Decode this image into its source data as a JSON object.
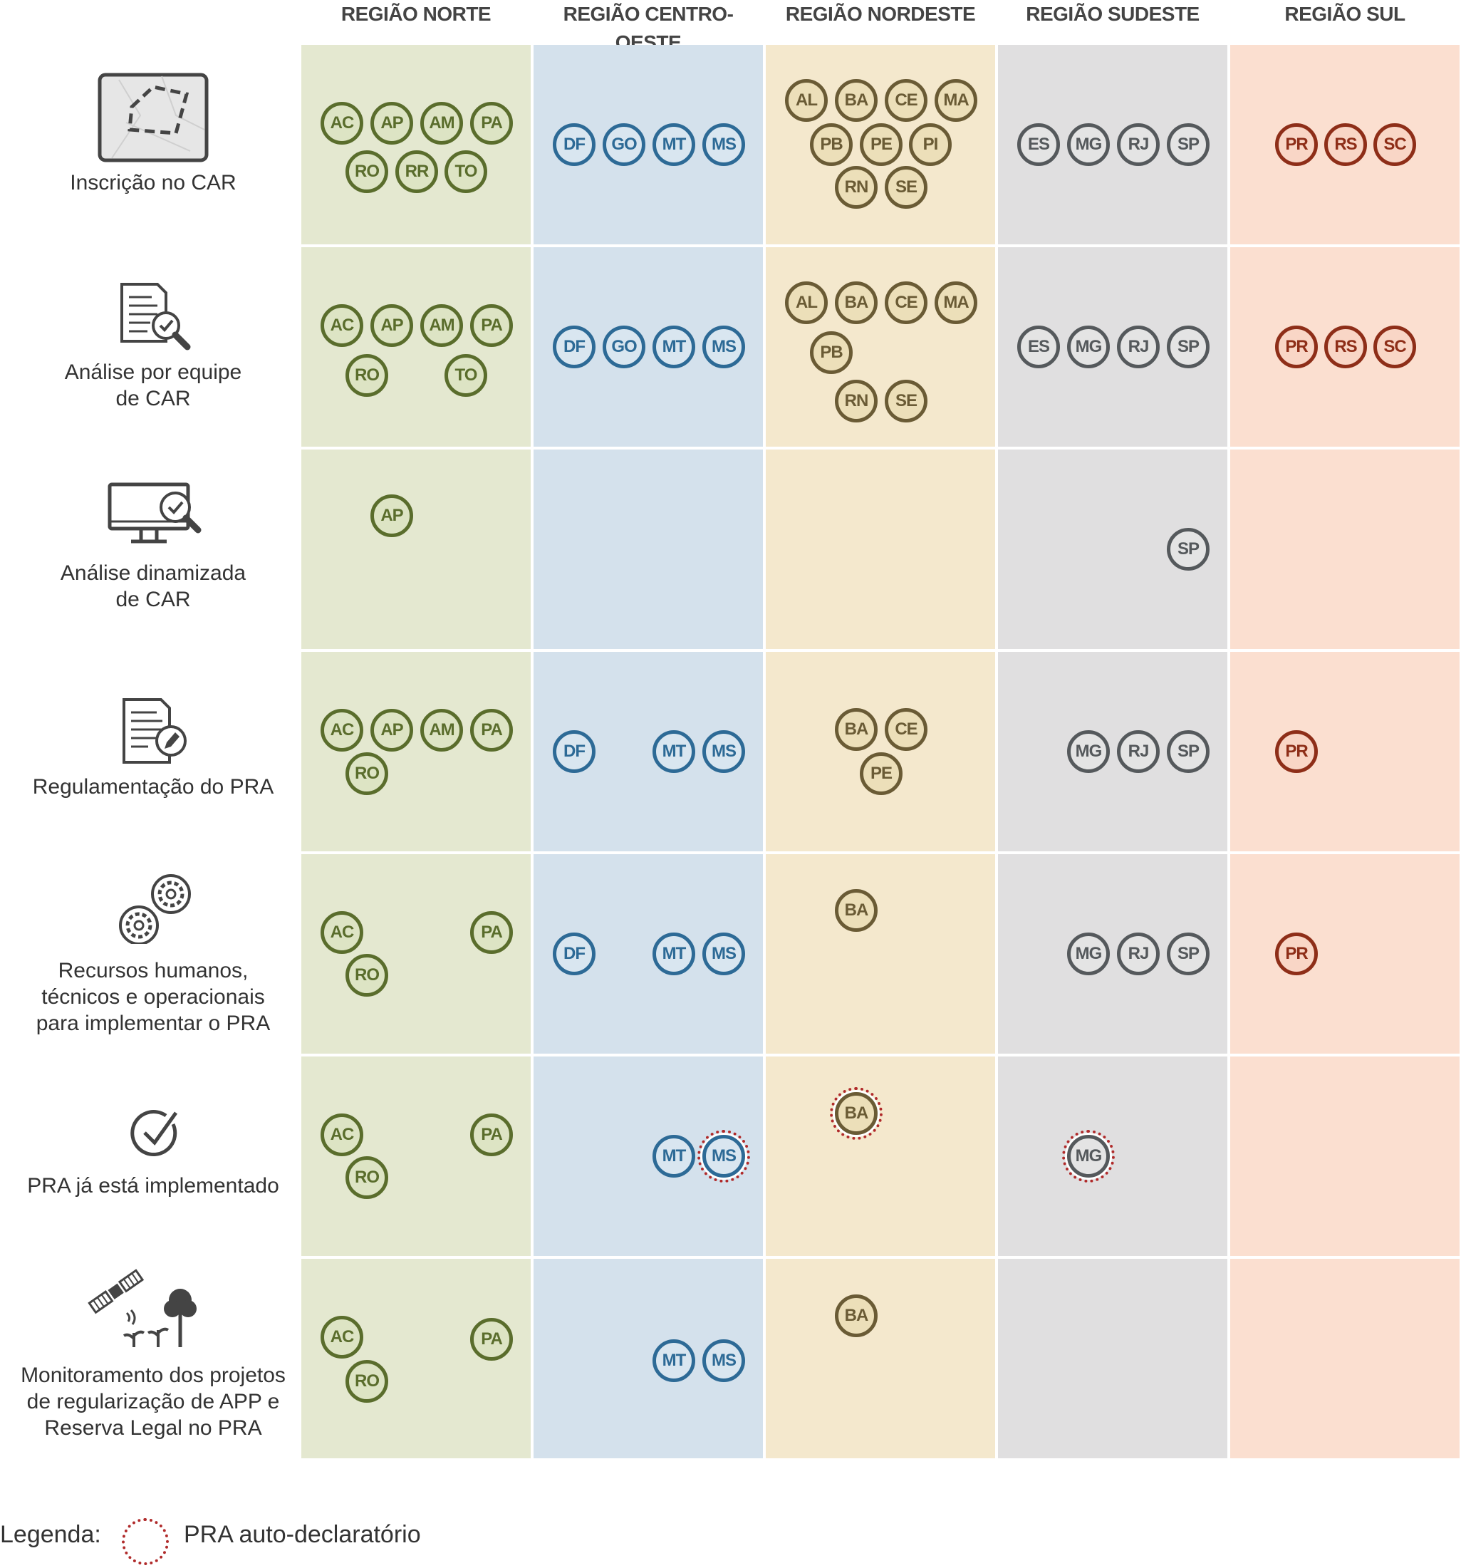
{
  "colors": {
    "norte_bg": "#e4e8d0",
    "norte_fg": "#5a6d2c",
    "norte_fill": "#dde4c4",
    "centro_bg": "#d4e1ec",
    "centro_fg": "#2d6a96",
    "centro_fill": "#d9e6f0",
    "nordeste_bg": "#f4e8cd",
    "nordeste_fg": "#6a5b35",
    "nordeste_fill": "#ecdfb9",
    "sudeste_bg": "#e0dfe0",
    "sudeste_fg": "#55595c",
    "sudeste_fill": "#e4e4e4",
    "sul_bg": "#fbdfd0",
    "sul_fg": "#8e2e18",
    "sul_fill": "#f9d6c6",
    "self_declared": "#b02a2a"
  },
  "regions": [
    {
      "key": "norte",
      "label": "REGIÃO NORTE"
    },
    {
      "key": "centro",
      "label": "REGIÃO CENTRO-OESTE"
    },
    {
      "key": "nordeste",
      "label": "REGIÃO NORDESTE"
    },
    {
      "key": "sudeste",
      "label": "REGIÃO SUDESTE"
    },
    {
      "key": "sul",
      "label": "REGIÃO SUL"
    }
  ],
  "rows": [
    {
      "label": "Inscrição no CAR",
      "icon": "map-area-icon"
    },
    {
      "label": "Análise por equipe\nde CAR",
      "icon": "document-magnifier-icon"
    },
    {
      "label": "Análise dinamizada\nde CAR",
      "icon": "monitor-magnifier-icon"
    },
    {
      "label": "Regulamentação do PRA",
      "icon": "document-pen-icon"
    },
    {
      "label": "Recursos humanos,\ntécnicos e operacionais\npara implementar o PRA",
      "icon": "gears-icon"
    },
    {
      "label": "PRA já está implementado",
      "icon": "checkmark-circle-icon"
    },
    {
      "label": "Monitoramento dos projetos\nde regularização de APP e\nReserva Legal no PRA",
      "icon": "satellite-trees-icon"
    }
  ],
  "cells": [
    [
      [
        "AC",
        "AP",
        "AM",
        "PA",
        "RO",
        "RR",
        "TO"
      ],
      [
        "DF",
        "GO",
        "MT",
        "MS"
      ],
      [
        "AL",
        "BA",
        "CE",
        "MA",
        "PB",
        "PE",
        "PI",
        "RN",
        "SE"
      ],
      [
        "ES",
        "MG",
        "RJ",
        "SP"
      ],
      [
        "PR",
        "RS",
        "SC"
      ]
    ],
    [
      [
        "AC",
        "AP",
        "AM",
        "PA",
        "RO",
        "TO"
      ],
      [
        "DF",
        "GO",
        "MT",
        "MS"
      ],
      [
        "AL",
        "BA",
        "CE",
        "MA",
        "PB",
        "RN",
        "SE"
      ],
      [
        "ES",
        "MG",
        "RJ",
        "SP"
      ],
      [
        "PR",
        "RS",
        "SC"
      ]
    ],
    [
      [
        "AP"
      ],
      [],
      [],
      [
        "SP"
      ],
      []
    ],
    [
      [
        "AC",
        "AP",
        "AM",
        "PA",
        "RO"
      ],
      [
        "DF",
        "MT",
        "MS"
      ],
      [
        "BA",
        "CE",
        "PE"
      ],
      [
        "MG",
        "RJ",
        "SP"
      ],
      [
        "PR"
      ]
    ],
    [
      [
        "AC",
        "PA",
        "RO"
      ],
      [
        "DF",
        "MT",
        "MS"
      ],
      [
        "BA"
      ],
      [
        "MG",
        "RJ",
        "SP"
      ],
      [
        "PR"
      ]
    ],
    [
      [
        "AC",
        "PA",
        "RO"
      ],
      [
        "MT",
        "MS"
      ],
      [
        "BA"
      ],
      [
        "MG"
      ],
      []
    ],
    [
      [
        "AC",
        "PA",
        "RO"
      ],
      [
        "MT",
        "MS"
      ],
      [
        "BA"
      ],
      [],
      []
    ]
  ],
  "self_declared": [
    {
      "row": 5,
      "region": 1,
      "state": "MS"
    },
    {
      "row": 5,
      "region": 2,
      "state": "BA"
    },
    {
      "row": 5,
      "region": 3,
      "state": "MG"
    }
  ],
  "legend": {
    "label": "Legenda:",
    "text": "PRA auto-declaratório"
  }
}
